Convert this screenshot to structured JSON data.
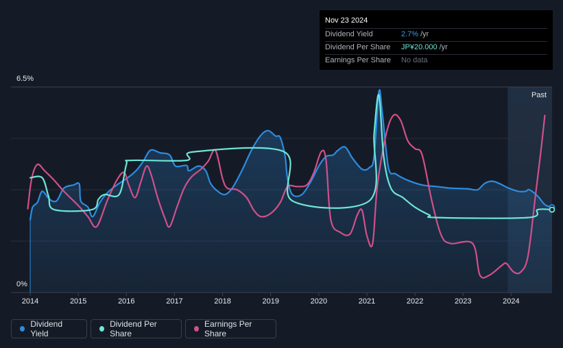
{
  "chart_data": {
    "type": "line",
    "y_axis": {
      "top_label": "6.5%",
      "bottom_label": "0%",
      "ylim": [
        0,
        6.5
      ]
    },
    "x_axis": {
      "ticks": [
        "2014",
        "2015",
        "2016",
        "2017",
        "2018",
        "2019",
        "2020",
        "2021",
        "2022",
        "2023",
        "2024"
      ],
      "xlim": [
        2013.6,
        2024.85
      ]
    },
    "past_label": "Past",
    "forecast_start": 2023.93,
    "series": [
      {
        "name": "Dividend Yield",
        "color": "#2d8ce0",
        "filled": true,
        "points": [
          [
            2014.0,
            2.3
          ],
          [
            2014.05,
            2.7
          ],
          [
            2014.15,
            2.85
          ],
          [
            2014.25,
            3.2
          ],
          [
            2014.4,
            2.95
          ],
          [
            2014.55,
            2.9
          ],
          [
            2014.7,
            3.3
          ],
          [
            2014.9,
            3.4
          ],
          [
            2015.02,
            3.43
          ],
          [
            2015.05,
            2.9
          ],
          [
            2015.2,
            2.7
          ],
          [
            2015.3,
            2.4
          ],
          [
            2015.45,
            2.85
          ],
          [
            2015.6,
            3.15
          ],
          [
            2015.8,
            3.4
          ],
          [
            2016.0,
            3.6
          ],
          [
            2016.2,
            3.85
          ],
          [
            2016.35,
            4.15
          ],
          [
            2016.5,
            4.5
          ],
          [
            2016.7,
            4.42
          ],
          [
            2016.9,
            4.35
          ],
          [
            2017.02,
            4.0
          ],
          [
            2017.25,
            4.02
          ],
          [
            2017.3,
            3.85
          ],
          [
            2017.5,
            4.0
          ],
          [
            2017.65,
            3.85
          ],
          [
            2017.75,
            3.45
          ],
          [
            2017.9,
            3.2
          ],
          [
            2018.05,
            3.1
          ],
          [
            2018.2,
            3.3
          ],
          [
            2018.4,
            3.85
          ],
          [
            2018.6,
            4.5
          ],
          [
            2018.8,
            4.98
          ],
          [
            2018.95,
            5.12
          ],
          [
            2019.1,
            4.95
          ],
          [
            2019.2,
            4.9
          ],
          [
            2019.3,
            4.3
          ],
          [
            2019.35,
            3.6
          ],
          [
            2019.45,
            3.1
          ],
          [
            2019.65,
            3.1
          ],
          [
            2019.85,
            3.55
          ],
          [
            2020.0,
            4.0
          ],
          [
            2020.15,
            4.3
          ],
          [
            2020.3,
            4.35
          ],
          [
            2020.4,
            4.5
          ],
          [
            2020.55,
            4.6
          ],
          [
            2020.7,
            4.25
          ],
          [
            2020.9,
            3.9
          ],
          [
            2021.05,
            3.95
          ],
          [
            2021.15,
            4.3
          ],
          [
            2021.25,
            6.35
          ],
          [
            2021.32,
            5.7
          ],
          [
            2021.45,
            3.95
          ],
          [
            2021.6,
            3.75
          ],
          [
            2021.85,
            3.55
          ],
          [
            2022.15,
            3.4
          ],
          [
            2022.45,
            3.35
          ],
          [
            2022.75,
            3.3
          ],
          [
            2023.1,
            3.28
          ],
          [
            2023.3,
            3.25
          ],
          [
            2023.45,
            3.45
          ],
          [
            2023.6,
            3.52
          ],
          [
            2023.75,
            3.45
          ],
          [
            2023.95,
            3.3
          ],
          [
            2024.15,
            3.2
          ],
          [
            2024.3,
            3.2
          ],
          [
            2024.38,
            3.25
          ],
          [
            2024.55,
            3.05
          ],
          [
            2024.7,
            2.78
          ],
          [
            2024.85,
            2.7
          ]
        ]
      },
      {
        "name": "Dividend Per Share",
        "color": "#6ee6d6",
        "filled": false,
        "points": [
          [
            2014.0,
            3.63
          ],
          [
            2014.25,
            3.63
          ],
          [
            2014.38,
            3.05
          ],
          [
            2014.5,
            2.62
          ],
          [
            2015.28,
            2.62
          ],
          [
            2015.42,
            2.95
          ],
          [
            2015.55,
            3.1
          ],
          [
            2015.85,
            3.1
          ],
          [
            2016.0,
            4.05
          ],
          [
            2016.1,
            4.18
          ],
          [
            2017.25,
            4.18
          ],
          [
            2017.4,
            4.45
          ],
          [
            2019.28,
            4.45
          ],
          [
            2019.45,
            2.9
          ],
          [
            2021.05,
            2.9
          ],
          [
            2021.15,
            5.0
          ],
          [
            2021.25,
            6.25
          ],
          [
            2021.35,
            4.3
          ],
          [
            2021.5,
            3.3
          ],
          [
            2021.75,
            3.0
          ],
          [
            2022.0,
            2.7
          ],
          [
            2022.3,
            2.45
          ],
          [
            2022.45,
            2.37
          ],
          [
            2024.35,
            2.37
          ],
          [
            2024.55,
            2.62
          ],
          [
            2024.85,
            2.62
          ]
        ]
      },
      {
        "name": "Earnings Per Share",
        "color": "#d2508a",
        "filled": false,
        "points": [
          [
            2013.95,
            2.65
          ],
          [
            2014.03,
            3.6
          ],
          [
            2014.15,
            4.05
          ],
          [
            2014.3,
            3.85
          ],
          [
            2014.5,
            3.55
          ],
          [
            2014.7,
            3.2
          ],
          [
            2015.0,
            2.75
          ],
          [
            2015.2,
            2.4
          ],
          [
            2015.38,
            2.08
          ],
          [
            2015.6,
            2.9
          ],
          [
            2015.8,
            3.55
          ],
          [
            2015.95,
            3.8
          ],
          [
            2016.05,
            3.4
          ],
          [
            2016.18,
            3.0
          ],
          [
            2016.3,
            3.5
          ],
          [
            2016.42,
            4.0
          ],
          [
            2016.52,
            3.7
          ],
          [
            2016.65,
            3.0
          ],
          [
            2016.8,
            2.35
          ],
          [
            2016.9,
            2.08
          ],
          [
            2017.05,
            2.7
          ],
          [
            2017.2,
            3.3
          ],
          [
            2017.35,
            3.65
          ],
          [
            2017.55,
            3.9
          ],
          [
            2017.7,
            4.15
          ],
          [
            2017.85,
            4.5
          ],
          [
            2018.0,
            3.6
          ],
          [
            2018.1,
            3.3
          ],
          [
            2018.3,
            3.25
          ],
          [
            2018.5,
            3.0
          ],
          [
            2018.65,
            2.6
          ],
          [
            2018.8,
            2.4
          ],
          [
            2019.0,
            2.5
          ],
          [
            2019.2,
            2.85
          ],
          [
            2019.35,
            3.35
          ],
          [
            2019.55,
            3.35
          ],
          [
            2019.75,
            3.4
          ],
          [
            2019.9,
            3.8
          ],
          [
            2020.05,
            4.45
          ],
          [
            2020.15,
            4.2
          ],
          [
            2020.25,
            2.3
          ],
          [
            2020.45,
            1.9
          ],
          [
            2020.65,
            1.85
          ],
          [
            2020.8,
            2.45
          ],
          [
            2020.9,
            2.6
          ],
          [
            2021.0,
            1.8
          ],
          [
            2021.12,
            1.55
          ],
          [
            2021.22,
            3.4
          ],
          [
            2021.4,
            5.0
          ],
          [
            2021.55,
            5.6
          ],
          [
            2021.7,
            5.45
          ],
          [
            2021.85,
            4.8
          ],
          [
            2022.0,
            4.55
          ],
          [
            2022.15,
            4.35
          ],
          [
            2022.35,
            2.9
          ],
          [
            2022.55,
            1.8
          ],
          [
            2022.75,
            1.55
          ],
          [
            2023.2,
            1.55
          ],
          [
            2023.35,
            0.55
          ],
          [
            2023.55,
            0.55
          ],
          [
            2023.8,
            0.85
          ],
          [
            2023.9,
            0.92
          ],
          [
            2024.05,
            0.65
          ],
          [
            2024.2,
            0.65
          ],
          [
            2024.35,
            1.15
          ],
          [
            2024.5,
            3.0
          ],
          [
            2024.62,
            4.5
          ],
          [
            2024.7,
            5.6
          ]
        ]
      }
    ]
  },
  "tooltip": {
    "date": "Nov 23 2024",
    "rows": [
      {
        "label": "Dividend Yield",
        "value": "2.7%",
        "unit": "/yr"
      },
      {
        "label": "Dividend Per Share",
        "value": "JP¥20.000",
        "unit": "/yr"
      },
      {
        "label": "Earnings Per Share",
        "value": "No data",
        "unit": ""
      }
    ]
  },
  "legend": [
    {
      "label": "Dividend Yield",
      "color": "#2d8ce0"
    },
    {
      "label": "Dividend Per Share",
      "color": "#6ee6d6"
    },
    {
      "label": "Earnings Per Share",
      "color": "#d2508a"
    }
  ]
}
